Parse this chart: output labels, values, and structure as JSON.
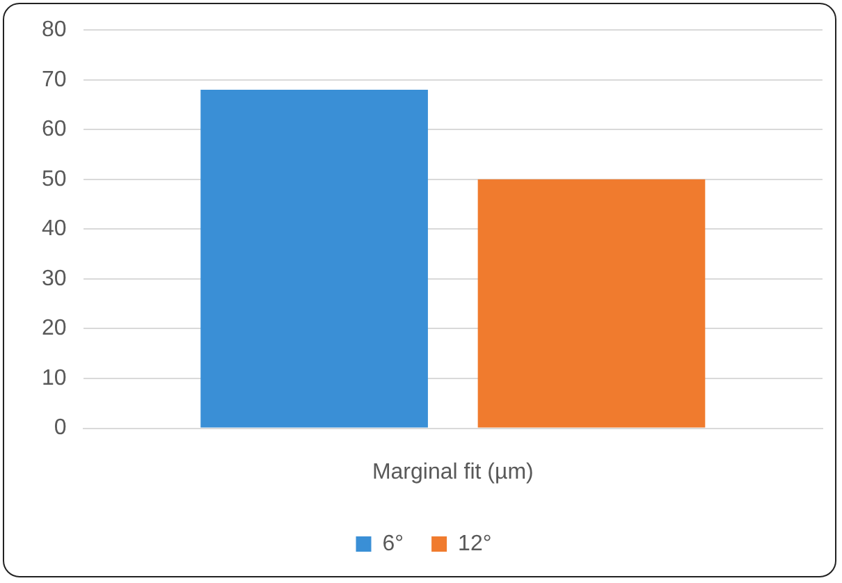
{
  "chart_data": {
    "type": "bar",
    "categories": [
      "Marginal fit (µm)"
    ],
    "series": [
      {
        "name": "6°",
        "color": "#3a8fd6",
        "values": [
          68
        ]
      },
      {
        "name": "12°",
        "color": "#f07b2e",
        "values": [
          50
        ]
      }
    ],
    "ylim": [
      0,
      80
    ],
    "yticks": [
      0,
      10,
      20,
      30,
      40,
      50,
      60,
      70,
      80
    ],
    "grid": "y",
    "legend": "bottom"
  }
}
